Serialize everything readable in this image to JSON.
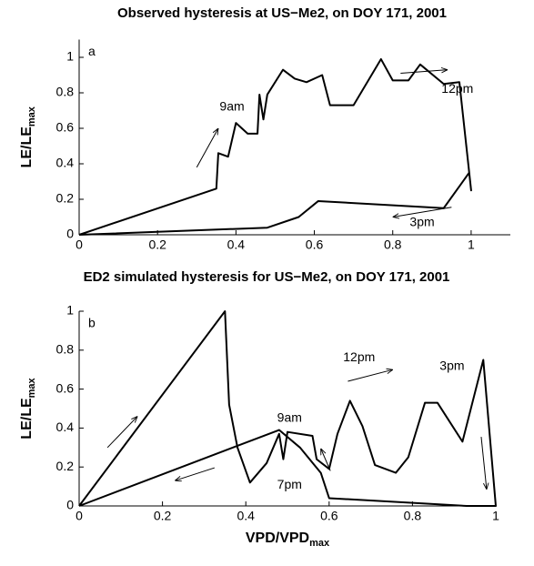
{
  "chart_data": [
    {
      "type": "line",
      "panel": "a",
      "title": "Observed hysteresis at US−Me2, on DOY 171, 2001",
      "ylabel": "LE/LE",
      "ylabel_sub": "max",
      "x": [
        0,
        0.35,
        0.355,
        0.38,
        0.4,
        0.43,
        0.455,
        0.46,
        0.47,
        0.48,
        0.52,
        0.55,
        0.58,
        0.62,
        0.64,
        0.7,
        0.77,
        0.8,
        0.84,
        0.87,
        0.93,
        0.97,
        1.0,
        0.995,
        0.93,
        0.61,
        0.56,
        0.48,
        0
      ],
      "series": [
        {
          "color": "#000000",
          "values": [
            0,
            0.26,
            0.46,
            0.44,
            0.63,
            0.57,
            0.57,
            0.79,
            0.65,
            0.79,
            0.93,
            0.88,
            0.86,
            0.9,
            0.73,
            0.73,
            0.99,
            0.87,
            0.87,
            0.96,
            0.85,
            0.86,
            0.25,
            0.35,
            0.15,
            0.19,
            0.1,
            0.04,
            0
          ]
        }
      ],
      "annotations": [
        "9am",
        "12pm",
        "3pm"
      ],
      "xlim": [
        0,
        1.1
      ],
      "ylim": [
        0,
        1.1
      ],
      "xticks": [
        0,
        0.2,
        0.4,
        0.6,
        0.8,
        1
      ],
      "yticks": [
        0,
        0.2,
        0.4,
        0.6,
        0.8,
        1
      ]
    },
    {
      "type": "line",
      "panel": "b",
      "title": "ED2 simulated hysteresis for US−Me2, on DOY 171, 2001",
      "ylabel": "LE/LE",
      "ylabel_sub": "max",
      "xlabel": "VPD/VPD",
      "xlabel_sub": "max",
      "x": [
        0,
        0.35,
        0.36,
        0.38,
        0.41,
        0.45,
        0.48,
        0.49,
        0.5,
        0.56,
        0.57,
        0.6,
        0.62,
        0.65,
        0.68,
        0.71,
        0.76,
        0.79,
        0.83,
        0.86,
        0.92,
        0.97,
        1.0,
        0.93,
        0.6,
        0.58,
        0.53,
        0.48,
        0
      ],
      "series": [
        {
          "color": "#000000",
          "values": [
            0,
            1.0,
            0.52,
            0.3,
            0.12,
            0.22,
            0.37,
            0.24,
            0.38,
            0.36,
            0.24,
            0.19,
            0.37,
            0.54,
            0.41,
            0.21,
            0.17,
            0.25,
            0.53,
            0.53,
            0.33,
            0.75,
            0,
            0,
            0.04,
            0.17,
            0.3,
            0.39,
            0
          ]
        }
      ],
      "annotations": [
        "12pm",
        "3pm",
        "9am",
        "7pm"
      ],
      "xlim": [
        0,
        1
      ],
      "ylim": [
        0,
        1
      ],
      "xticks": [
        0,
        0.2,
        0.4,
        0.6,
        0.8,
        1
      ],
      "yticks": [
        0,
        0.2,
        0.4,
        0.6,
        0.8,
        1
      ]
    }
  ]
}
